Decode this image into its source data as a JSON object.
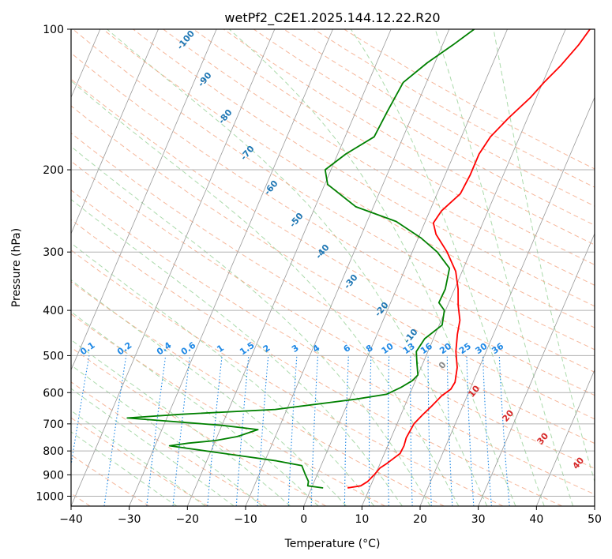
{
  "chart_data": {
    "type": "line",
    "title": "wetPf2_C2E1.2025.144.12.22.R20",
    "xlabel": "Temperature (°C)",
    "ylabel": "Pressure (hPa)",
    "xlim": [
      -40,
      50
    ],
    "ylim": [
      1050,
      100
    ],
    "y_scale": "log",
    "grid": true,
    "x_ticks": [
      -40,
      -30,
      -20,
      -10,
      0,
      10,
      20,
      30,
      40,
      50
    ],
    "x_tick_labels": [
      "−40",
      "−30",
      "−20",
      "−10",
      "0",
      "10",
      "20",
      "30",
      "40",
      "50"
    ],
    "y_ticks": [
      100,
      200,
      300,
      400,
      500,
      600,
      700,
      800,
      900,
      1000
    ],
    "y_tick_labels": [
      "100",
      "200",
      "300",
      "400",
      "500",
      "600",
      "700",
      "800",
      "900",
      "1000"
    ],
    "colors": {
      "temperature": "#ff0000",
      "dewpoint": "#008000",
      "isotherm": "#999999",
      "grid": "#b0b0b0",
      "dry_adiabat": "#f4a582",
      "moist_adiabat": "#8fce8f",
      "mixing_ratio": "#1e88e5",
      "theta_label": "#1f77b4",
      "moist_label": "#d62728",
      "zero_label": "#888888"
    },
    "series": [
      {
        "key": "temperature",
        "points": [
          [
            6.2,
            960
          ],
          [
            8.3,
            950
          ],
          [
            9.2,
            930
          ],
          [
            9.8,
            900
          ],
          [
            10.3,
            870
          ],
          [
            11.2,
            850
          ],
          [
            12.7,
            810
          ],
          [
            12.8,
            780
          ],
          [
            12.6,
            750
          ],
          [
            12.9,
            700
          ],
          [
            13.7,
            670
          ],
          [
            14.7,
            640
          ],
          [
            15.6,
            610
          ],
          [
            16.7,
            590
          ],
          [
            16.9,
            570
          ],
          [
            16.2,
            530
          ],
          [
            14.8,
            490
          ],
          [
            13.8,
            450
          ],
          [
            13.2,
            420
          ],
          [
            11.8,
            390
          ],
          [
            10.6,
            360
          ],
          [
            8.9,
            330
          ],
          [
            6.0,
            300
          ],
          [
            2.8,
            275
          ],
          [
            1.5,
            260
          ],
          [
            2.0,
            245
          ],
          [
            4.0,
            225
          ],
          [
            4.3,
            205
          ],
          [
            4.3,
            185
          ],
          [
            5.0,
            170
          ],
          [
            6.7,
            155
          ],
          [
            9.0,
            140
          ],
          [
            10.2,
            130
          ],
          [
            11.8,
            120
          ],
          [
            13.4,
            108
          ],
          [
            14.2,
            100
          ]
        ]
      },
      {
        "key": "dewpoint",
        "points": [
          [
            2.0,
            960
          ],
          [
            -0.8,
            950
          ],
          [
            -1.0,
            930
          ],
          [
            -2.0,
            900
          ],
          [
            -3.3,
            860
          ],
          [
            -8.0,
            840
          ],
          [
            -16.0,
            815
          ],
          [
            -27.5,
            780
          ],
          [
            -24.5,
            770
          ],
          [
            -20.0,
            760
          ],
          [
            -16.5,
            745
          ],
          [
            -13.5,
            720
          ],
          [
            -20.0,
            705
          ],
          [
            -36.8,
            680
          ],
          [
            -28.0,
            668
          ],
          [
            -12.0,
            652
          ],
          [
            1.0,
            620
          ],
          [
            6.0,
            605
          ],
          [
            8.0,
            585
          ],
          [
            9.5,
            565
          ],
          [
            10.0,
            550
          ],
          [
            9.0,
            520
          ],
          [
            8.0,
            490
          ],
          [
            8.5,
            460
          ],
          [
            10.5,
            430
          ],
          [
            9.8,
            400
          ],
          [
            8.3,
            385
          ],
          [
            8.4,
            360
          ],
          [
            7.6,
            325
          ],
          [
            4.3,
            300
          ],
          [
            0.5,
            280
          ],
          [
            -5.0,
            258
          ],
          [
            -13.0,
            240
          ],
          [
            -19.5,
            215
          ],
          [
            -21.0,
            200
          ],
          [
            -18.6,
            185
          ],
          [
            -15.0,
            170
          ],
          [
            -14.6,
            150
          ],
          [
            -14.0,
            130
          ],
          [
            -11.3,
            118
          ],
          [
            -8.2,
            108
          ],
          [
            -5.7,
            100
          ]
        ]
      }
    ],
    "dry_adiabat_labels": [
      "-100",
      "-90",
      "-80",
      "-70",
      "-60",
      "-50",
      "-40",
      "-30",
      "-20",
      "-10",
      "0"
    ],
    "moist_adiabat_labels": [
      "10",
      "20",
      "30",
      "40"
    ],
    "mixing_ratio_labels": [
      "0.1",
      "0.2",
      "0.4",
      "0.6",
      "1",
      "1.5",
      "2",
      "3",
      "4",
      "6",
      "8",
      "10",
      "13",
      "16",
      "20",
      "25",
      "30",
      "36"
    ]
  }
}
